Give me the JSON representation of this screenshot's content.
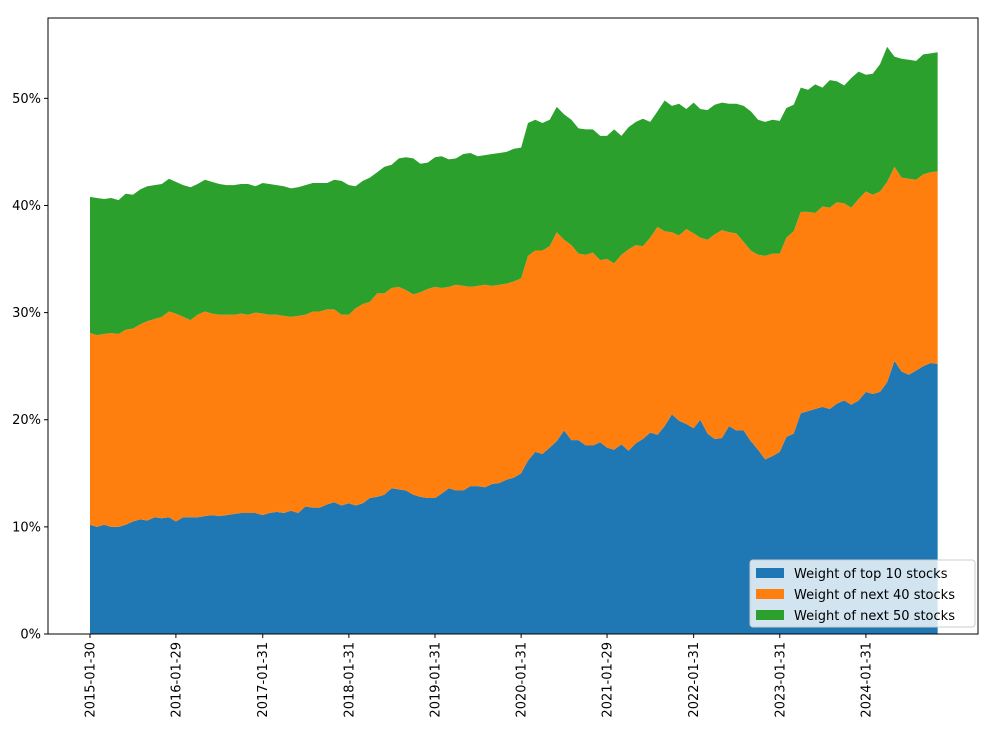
{
  "chart_data": {
    "type": "stacked_area",
    "x": [
      "2015-01-30",
      "2015-02-28",
      "2015-03-31",
      "2015-04-30",
      "2015-05-31",
      "2015-06-30",
      "2015-07-31",
      "2015-08-31",
      "2015-09-30",
      "2015-10-31",
      "2015-11-30",
      "2015-12-31",
      "2016-01-29",
      "2016-02-29",
      "2016-03-31",
      "2016-04-30",
      "2016-05-31",
      "2016-06-30",
      "2016-07-31",
      "2016-08-31",
      "2016-09-30",
      "2016-10-31",
      "2016-11-30",
      "2016-12-31",
      "2017-01-31",
      "2017-02-28",
      "2017-03-31",
      "2017-04-30",
      "2017-05-31",
      "2017-06-30",
      "2017-07-31",
      "2017-08-31",
      "2017-09-30",
      "2017-10-31",
      "2017-11-30",
      "2017-12-31",
      "2018-01-31",
      "2018-02-28",
      "2018-03-31",
      "2018-04-30",
      "2018-05-31",
      "2018-06-30",
      "2018-07-31",
      "2018-08-31",
      "2018-09-30",
      "2018-10-31",
      "2018-11-30",
      "2018-12-31",
      "2019-01-31",
      "2019-02-28",
      "2019-03-31",
      "2019-04-30",
      "2019-05-31",
      "2019-06-30",
      "2019-07-31",
      "2019-08-31",
      "2019-09-30",
      "2019-10-31",
      "2019-11-30",
      "2019-12-31",
      "2020-01-31",
      "2020-02-29",
      "2020-03-31",
      "2020-04-30",
      "2020-05-31",
      "2020-06-30",
      "2020-07-31",
      "2020-08-31",
      "2020-09-30",
      "2020-10-31",
      "2020-11-30",
      "2020-12-31",
      "2021-01-29",
      "2021-02-28",
      "2021-03-31",
      "2021-04-30",
      "2021-05-31",
      "2021-06-30",
      "2021-07-31",
      "2021-08-31",
      "2021-09-30",
      "2021-10-31",
      "2021-11-30",
      "2021-12-31",
      "2022-01-31",
      "2022-02-28",
      "2022-03-31",
      "2022-04-30",
      "2022-05-31",
      "2022-06-30",
      "2022-07-31",
      "2022-08-31",
      "2022-09-30",
      "2022-10-31",
      "2022-11-30",
      "2022-12-31",
      "2023-01-31",
      "2023-02-28",
      "2023-03-31",
      "2023-04-30",
      "2023-05-31",
      "2023-06-30",
      "2023-07-31",
      "2023-08-31",
      "2023-09-30",
      "2023-10-31",
      "2023-11-30",
      "2023-12-31",
      "2024-01-31",
      "2024-02-29",
      "2024-03-31",
      "2024-04-30",
      "2024-05-31",
      "2024-06-30",
      "2024-07-31",
      "2024-08-31",
      "2024-09-30",
      "2024-10-31",
      "2024-11-30"
    ],
    "series": [
      {
        "name": "Weight of top 10 stocks",
        "color": "#1f77b4",
        "values": [
          10.2,
          10.0,
          10.2,
          10.0,
          10.0,
          10.2,
          10.5,
          10.7,
          10.6,
          10.9,
          10.8,
          10.9,
          10.5,
          10.9,
          10.9,
          10.9,
          11.0,
          11.1,
          11.0,
          11.1,
          11.2,
          11.3,
          11.3,
          11.3,
          11.1,
          11.3,
          11.4,
          11.3,
          11.5,
          11.3,
          11.9,
          11.8,
          11.8,
          12.1,
          12.3,
          12.0,
          12.2,
          12.0,
          12.2,
          12.7,
          12.8,
          13.0,
          13.6,
          13.5,
          13.4,
          13.0,
          12.8,
          12.7,
          12.7,
          13.1,
          13.6,
          13.4,
          13.4,
          13.8,
          13.8,
          13.7,
          14.0,
          14.1,
          14.4,
          14.6,
          15.0,
          16.2,
          17.0,
          16.8,
          17.4,
          18.0,
          19.0,
          18.1,
          18.1,
          17.6,
          17.6,
          17.9,
          17.4,
          17.2,
          17.7,
          17.1,
          17.8,
          18.2,
          18.8,
          18.6,
          19.4,
          20.5,
          19.9,
          19.6,
          19.2,
          20.0,
          18.7,
          18.2,
          18.3,
          19.4,
          19.0,
          19.0,
          18.0,
          17.2,
          16.3,
          16.6,
          17.0,
          18.4,
          18.7,
          20.6,
          20.8,
          21.0,
          21.2,
          21.0,
          21.5,
          21.8,
          21.4,
          21.8,
          22.6,
          22.4,
          22.6,
          23.5,
          25.5,
          24.5,
          24.2,
          24.6,
          25.0,
          25.3,
          25.2
        ]
      },
      {
        "name": "Weight of next 40 stocks",
        "color": "#ff7f0e",
        "values": [
          17.9,
          17.9,
          17.8,
          18.1,
          18.0,
          18.2,
          18.0,
          18.2,
          18.6,
          18.5,
          18.8,
          19.2,
          19.4,
          18.7,
          18.4,
          18.9,
          19.1,
          18.8,
          18.8,
          18.7,
          18.6,
          18.6,
          18.5,
          18.7,
          18.8,
          18.5,
          18.4,
          18.4,
          18.1,
          18.4,
          17.9,
          18.3,
          18.3,
          18.2,
          18.0,
          17.8,
          17.6,
          18.4,
          18.6,
          18.3,
          19.0,
          18.8,
          18.7,
          18.9,
          18.7,
          18.7,
          19.1,
          19.5,
          19.7,
          19.2,
          18.8,
          19.2,
          19.1,
          18.6,
          18.7,
          18.9,
          18.5,
          18.5,
          18.3,
          18.3,
          18.2,
          19.1,
          18.8,
          19.0,
          18.8,
          19.5,
          17.8,
          18.2,
          17.4,
          17.8,
          18.0,
          17.0,
          17.6,
          17.4,
          17.7,
          18.8,
          18.5,
          18.0,
          18.2,
          19.4,
          18.2,
          17.0,
          17.3,
          18.2,
          18.2,
          17.0,
          18.1,
          19.1,
          19.4,
          18.1,
          18.4,
          17.6,
          17.8,
          18.2,
          19.0,
          18.9,
          18.5,
          18.6,
          18.9,
          18.8,
          18.6,
          18.3,
          18.7,
          18.8,
          18.8,
          18.4,
          18.4,
          18.8,
          18.7,
          18.6,
          18.7,
          18.7,
          18.1,
          18.1,
          18.3,
          17.8,
          17.9,
          17.8,
          18.0
        ]
      },
      {
        "name": "Weight of next 50 stocks",
        "color": "#2ca02c",
        "values": [
          12.7,
          12.8,
          12.6,
          12.6,
          12.5,
          12.7,
          12.5,
          12.6,
          12.6,
          12.5,
          12.4,
          12.4,
          12.3,
          12.3,
          12.4,
          12.2,
          12.3,
          12.3,
          12.2,
          12.1,
          12.1,
          12.1,
          12.2,
          11.8,
          12.2,
          12.2,
          12.1,
          12.1,
          12.0,
          12.0,
          12.1,
          12.0,
          12.0,
          11.8,
          12.1,
          12.5,
          12.1,
          11.4,
          11.5,
          11.6,
          11.3,
          11.8,
          11.5,
          12.0,
          12.4,
          12.7,
          12.0,
          11.8,
          12.1,
          12.3,
          11.9,
          11.8,
          12.3,
          12.5,
          12.1,
          12.1,
          12.3,
          12.3,
          12.3,
          12.4,
          12.2,
          12.4,
          12.2,
          11.9,
          11.8,
          11.7,
          11.7,
          11.7,
          11.7,
          11.7,
          11.5,
          11.6,
          11.5,
          12.5,
          11.1,
          11.4,
          11.5,
          11.9,
          10.8,
          10.8,
          12.2,
          11.8,
          12.3,
          11.2,
          12.2,
          12.0,
          12.1,
          12.1,
          11.9,
          12.0,
          12.1,
          12.7,
          13.0,
          12.6,
          12.5,
          12.5,
          12.4,
          12.1,
          11.8,
          11.6,
          11.4,
          12.0,
          11.1,
          11.9,
          11.3,
          11.0,
          12.1,
          11.9,
          10.9,
          11.3,
          11.9,
          12.6,
          10.3,
          11.1,
          11.1,
          11.1,
          11.2,
          11.1,
          11.1
        ]
      }
    ],
    "xlim": [
      "2014-08-05",
      "2025-05-20"
    ],
    "xticks": [
      "2015-01-30",
      "2016-01-29",
      "2017-01-31",
      "2018-01-31",
      "2019-01-31",
      "2020-01-31",
      "2021-01-29",
      "2022-01-31",
      "2023-01-31",
      "2024-01-31"
    ],
    "ylim": [
      0,
      57.5
    ],
    "yticks": [
      {
        "value": 0,
        "label": "0%"
      },
      {
        "value": 10,
        "label": "10%"
      },
      {
        "value": 20,
        "label": "20%"
      },
      {
        "value": 30,
        "label": "30%"
      },
      {
        "value": 40,
        "label": "40%"
      },
      {
        "value": 50,
        "label": "50%"
      }
    ],
    "legend": "lower right"
  }
}
